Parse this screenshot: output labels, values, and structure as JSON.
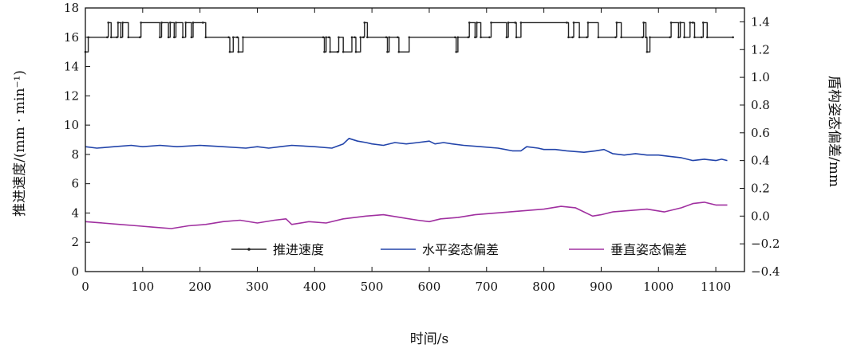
{
  "chart_data": {
    "type": "line",
    "xlabel": "时间/s",
    "ylabel_left": "推进速度/(mm · min⁻¹)",
    "ylabel_right": "盾构姿态偏差/mm",
    "xlim": [
      0,
      1150
    ],
    "ylim_left": [
      0,
      18
    ],
    "ylim_right": [
      -0.4,
      1.5
    ],
    "x_ticks": [
      0,
      100,
      200,
      300,
      400,
      500,
      600,
      700,
      800,
      900,
      1000,
      1100
    ],
    "y_left_ticks": [
      0,
      2,
      4,
      6,
      8,
      10,
      12,
      14,
      16,
      18
    ],
    "y_right_ticks": [
      -0.4,
      -0.2,
      0.0,
      0.2,
      0.4,
      0.6,
      0.8,
      1.0,
      1.2,
      1.4
    ],
    "y_right_tick_labels": [
      "−0.4",
      "−0.2",
      "0.0",
      "0.2",
      "0.4",
      "0.6",
      "0.8",
      "1.0",
      "1.2",
      "1.4"
    ],
    "legend_position": "bottom-center",
    "series": [
      {
        "name": "推进速度",
        "axis": "left",
        "color": "#222222",
        "step": true,
        "points": [
          [
            0,
            15
          ],
          [
            5,
            16
          ],
          [
            38,
            16
          ],
          [
            40,
            17
          ],
          [
            45,
            16
          ],
          [
            55,
            16
          ],
          [
            57,
            17
          ],
          [
            62,
            16
          ],
          [
            65,
            17
          ],
          [
            75,
            16
          ],
          [
            95,
            16
          ],
          [
            97,
            17
          ],
          [
            130,
            16
          ],
          [
            133,
            17
          ],
          [
            145,
            16
          ],
          [
            148,
            17
          ],
          [
            155,
            16
          ],
          [
            158,
            17
          ],
          [
            170,
            16
          ],
          [
            175,
            17
          ],
          [
            185,
            16
          ],
          [
            188,
            17
          ],
          [
            205,
            17
          ],
          [
            210,
            16
          ],
          [
            250,
            16
          ],
          [
            252,
            15
          ],
          [
            258,
            16
          ],
          [
            265,
            16
          ],
          [
            267,
            15
          ],
          [
            275,
            16
          ],
          [
            415,
            16
          ],
          [
            417,
            15
          ],
          [
            420,
            16
          ],
          [
            425,
            16
          ],
          [
            427,
            15
          ],
          [
            440,
            15
          ],
          [
            442,
            16
          ],
          [
            450,
            15
          ],
          [
            465,
            16
          ],
          [
            470,
            16
          ],
          [
            472,
            15
          ],
          [
            480,
            16
          ],
          [
            485,
            16
          ],
          [
            487,
            17
          ],
          [
            492,
            16
          ],
          [
            525,
            16
          ],
          [
            527,
            15
          ],
          [
            530,
            16
          ],
          [
            545,
            16
          ],
          [
            547,
            15
          ],
          [
            565,
            16
          ],
          [
            645,
            16
          ],
          [
            647,
            15
          ],
          [
            650,
            16
          ],
          [
            668,
            16
          ],
          [
            670,
            17
          ],
          [
            680,
            16
          ],
          [
            683,
            17
          ],
          [
            690,
            16
          ],
          [
            705,
            16
          ],
          [
            708,
            17
          ],
          [
            735,
            16
          ],
          [
            738,
            17
          ],
          [
            750,
            17
          ],
          [
            752,
            16
          ],
          [
            760,
            17
          ],
          [
            840,
            17
          ],
          [
            843,
            16
          ],
          [
            850,
            16
          ],
          [
            852,
            17
          ],
          [
            862,
            16
          ],
          [
            875,
            16
          ],
          [
            877,
            17
          ],
          [
            895,
            16
          ],
          [
            925,
            16
          ],
          [
            927,
            17
          ],
          [
            935,
            16
          ],
          [
            972,
            16
          ],
          [
            974,
            17
          ],
          [
            978,
            16
          ],
          [
            980,
            15
          ],
          [
            985,
            16
          ],
          [
            1020,
            16
          ],
          [
            1022,
            17
          ],
          [
            1035,
            16
          ],
          [
            1038,
            17
          ],
          [
            1045,
            16
          ],
          [
            1055,
            17
          ],
          [
            1060,
            17
          ],
          [
            1063,
            16
          ],
          [
            1075,
            16
          ],
          [
            1078,
            17
          ],
          [
            1085,
            16
          ],
          [
            1130,
            16
          ]
        ]
      },
      {
        "name": "水平姿态偏差",
        "axis": "right",
        "color": "#2244aa",
        "points": [
          [
            0,
            0.5
          ],
          [
            20,
            0.49
          ],
          [
            50,
            0.5
          ],
          [
            80,
            0.51
          ],
          [
            100,
            0.5
          ],
          [
            130,
            0.51
          ],
          [
            160,
            0.5
          ],
          [
            200,
            0.51
          ],
          [
            240,
            0.5
          ],
          [
            280,
            0.49
          ],
          [
            300,
            0.5
          ],
          [
            320,
            0.49
          ],
          [
            340,
            0.5
          ],
          [
            360,
            0.51
          ],
          [
            400,
            0.5
          ],
          [
            430,
            0.49
          ],
          [
            450,
            0.52
          ],
          [
            460,
            0.56
          ],
          [
            475,
            0.54
          ],
          [
            490,
            0.53
          ],
          [
            500,
            0.52
          ],
          [
            520,
            0.51
          ],
          [
            540,
            0.53
          ],
          [
            560,
            0.52
          ],
          [
            580,
            0.53
          ],
          [
            600,
            0.54
          ],
          [
            610,
            0.52
          ],
          [
            625,
            0.53
          ],
          [
            640,
            0.52
          ],
          [
            660,
            0.51
          ],
          [
            690,
            0.5
          ],
          [
            720,
            0.49
          ],
          [
            745,
            0.47
          ],
          [
            760,
            0.47
          ],
          [
            770,
            0.5
          ],
          [
            790,
            0.49
          ],
          [
            800,
            0.48
          ],
          [
            820,
            0.48
          ],
          [
            840,
            0.47
          ],
          [
            870,
            0.46
          ],
          [
            890,
            0.47
          ],
          [
            905,
            0.48
          ],
          [
            920,
            0.45
          ],
          [
            940,
            0.44
          ],
          [
            960,
            0.45
          ],
          [
            980,
            0.44
          ],
          [
            1000,
            0.44
          ],
          [
            1020,
            0.43
          ],
          [
            1040,
            0.42
          ],
          [
            1060,
            0.4
          ],
          [
            1080,
            0.41
          ],
          [
            1100,
            0.4
          ],
          [
            1110,
            0.41
          ],
          [
            1120,
            0.4
          ]
        ]
      },
      {
        "name": "垂直姿态偏差",
        "axis": "right",
        "color": "#a030a0",
        "points": [
          [
            0,
            -0.04
          ],
          [
            30,
            -0.05
          ],
          [
            60,
            -0.06
          ],
          [
            90,
            -0.07
          ],
          [
            120,
            -0.08
          ],
          [
            150,
            -0.09
          ],
          [
            180,
            -0.07
          ],
          [
            210,
            -0.06
          ],
          [
            240,
            -0.04
          ],
          [
            270,
            -0.03
          ],
          [
            300,
            -0.05
          ],
          [
            330,
            -0.03
          ],
          [
            350,
            -0.02
          ],
          [
            360,
            -0.06
          ],
          [
            390,
            -0.04
          ],
          [
            420,
            -0.05
          ],
          [
            450,
            -0.02
          ],
          [
            470,
            -0.01
          ],
          [
            490,
            0.0
          ],
          [
            520,
            0.01
          ],
          [
            550,
            -0.01
          ],
          [
            580,
            -0.03
          ],
          [
            600,
            -0.04
          ],
          [
            620,
            -0.02
          ],
          [
            650,
            -0.01
          ],
          [
            680,
            0.01
          ],
          [
            710,
            0.02
          ],
          [
            740,
            0.03
          ],
          [
            770,
            0.04
          ],
          [
            800,
            0.05
          ],
          [
            830,
            0.07
          ],
          [
            855,
            0.06
          ],
          [
            870,
            0.03
          ],
          [
            885,
            0.0
          ],
          [
            900,
            0.01
          ],
          [
            920,
            0.03
          ],
          [
            950,
            0.04
          ],
          [
            980,
            0.05
          ],
          [
            1010,
            0.03
          ],
          [
            1040,
            0.06
          ],
          [
            1060,
            0.09
          ],
          [
            1080,
            0.1
          ],
          [
            1100,
            0.08
          ],
          [
            1120,
            0.08
          ]
        ]
      }
    ]
  }
}
